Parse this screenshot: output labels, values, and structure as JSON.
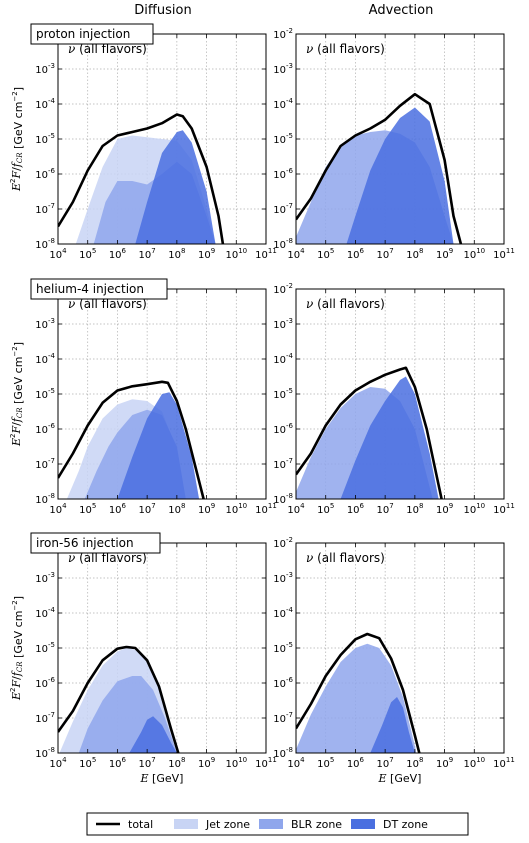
{
  "columns": [
    "Diffusion",
    "Advection"
  ],
  "rows": [
    {
      "label": "proton injection"
    },
    {
      "label": "helium-4 injection"
    },
    {
      "label": "iron-56 injection"
    }
  ],
  "annotation": "ν (all flavors)",
  "xlabel": "E [GeV]",
  "ylabel": "E²F/f_CR [GeV cm⁻²]",
  "legend": {
    "items": [
      {
        "name": "total",
        "color": "#000000",
        "kind": "line"
      },
      {
        "name": "Jet zone",
        "color": "#c8d4f4",
        "kind": "area"
      },
      {
        "name": "BLR zone",
        "color": "#8fa6ec",
        "kind": "area"
      },
      {
        "name": "DT zone",
        "color": "#4a6fe0",
        "kind": "area"
      }
    ]
  },
  "colors": {
    "jet": "#c8d4f4",
    "blr": "#8fa6ec",
    "dt": "#4a6fe0",
    "total": "#000000",
    "grid": "#b0b0b0"
  },
  "chart_data": [
    {
      "type": "area",
      "title": "Diffusion",
      "row_label": "proton injection",
      "xscale": "log",
      "yscale": "log",
      "xlim": [
        10000,
        100000000000
      ],
      "ylim": [
        1e-08,
        0.01
      ],
      "x_ticks": [
        4,
        5,
        6,
        7,
        8,
        9,
        10,
        11
      ],
      "y_ticks": [
        -8,
        -7,
        -6,
        -5,
        -4,
        -3,
        -2
      ],
      "grid": true,
      "series": [
        {
          "name": "Jet zone",
          "log10E": [
            4.6,
            5.0,
            5.5,
            6.0,
            6.5,
            7.0,
            7.5,
            8.0,
            8.5,
            9.0,
            9.3
          ],
          "log10F": [
            -8.0,
            -7.0,
            -5.8,
            -5.0,
            -4.9,
            -4.95,
            -5.0,
            -5.05,
            -5.6,
            -7.0,
            -8.0
          ]
        },
        {
          "name": "BLR zone",
          "log10E": [
            5.2,
            5.6,
            6.0,
            6.5,
            7.0,
            7.5,
            8.0,
            8.5,
            9.0,
            9.3
          ],
          "log10F": [
            -8.0,
            -6.8,
            -6.2,
            -6.2,
            -6.3,
            -6.0,
            -5.65,
            -6.0,
            -7.2,
            -8.0
          ]
        },
        {
          "name": "DT zone",
          "log10E": [
            6.6,
            7.0,
            7.5,
            8.0,
            8.2,
            8.5,
            9.0,
            9.3
          ],
          "log10F": [
            -8.0,
            -6.8,
            -5.4,
            -4.8,
            -4.75,
            -5.1,
            -6.5,
            -8.0
          ]
        },
        {
          "name": "total",
          "log10E": [
            4.0,
            4.5,
            5.0,
            5.5,
            6.0,
            6.5,
            7.0,
            7.5,
            7.8,
            8.0,
            8.2,
            8.5,
            9.0,
            9.4,
            9.55
          ],
          "log10F": [
            -7.5,
            -6.8,
            -5.9,
            -5.2,
            -4.9,
            -4.8,
            -4.7,
            -4.55,
            -4.4,
            -4.3,
            -4.35,
            -4.7,
            -5.8,
            -7.2,
            -8.0
          ]
        }
      ]
    },
    {
      "type": "area",
      "title": "Advection",
      "row_label": "proton injection",
      "xscale": "log",
      "yscale": "log",
      "xlim": [
        10000,
        100000000000
      ],
      "ylim": [
        1e-08,
        0.01
      ],
      "x_ticks": [
        4,
        5,
        6,
        7,
        8,
        9,
        10,
        11
      ],
      "y_ticks": [
        -8,
        -7,
        -6,
        -5,
        -4,
        -3,
        -2
      ],
      "grid": true,
      "series": [
        {
          "name": "BLR zone",
          "log10E": [
            4.0,
            4.5,
            5.0,
            5.5,
            6.0,
            6.5,
            7.0,
            7.5,
            8.0,
            8.5,
            9.0,
            9.3
          ],
          "log10F": [
            -7.8,
            -6.8,
            -5.8,
            -5.2,
            -4.9,
            -4.8,
            -4.75,
            -4.85,
            -5.1,
            -5.8,
            -7.2,
            -8.0
          ]
        },
        {
          "name": "DT zone",
          "log10E": [
            5.7,
            6.0,
            6.5,
            7.0,
            7.5,
            8.0,
            8.5,
            9.0,
            9.3
          ],
          "log10F": [
            -8.0,
            -7.2,
            -5.9,
            -5.0,
            -4.4,
            -4.1,
            -4.5,
            -6.2,
            -8.0
          ]
        },
        {
          "name": "total",
          "log10E": [
            4.0,
            4.5,
            5.0,
            5.5,
            6.0,
            6.5,
            7.0,
            7.5,
            8.0,
            8.5,
            9.0,
            9.3,
            9.55
          ],
          "log10F": [
            -7.3,
            -6.7,
            -5.9,
            -5.2,
            -4.9,
            -4.7,
            -4.45,
            -4.05,
            -3.72,
            -4.0,
            -5.6,
            -7.2,
            -8.0
          ]
        }
      ]
    },
    {
      "type": "area",
      "title": "Diffusion",
      "row_label": "helium-4 injection",
      "xscale": "log",
      "yscale": "log",
      "xlim": [
        10000,
        100000000000
      ],
      "ylim": [
        1e-08,
        0.01
      ],
      "x_ticks": [
        4,
        5,
        6,
        7,
        8,
        9,
        10,
        11
      ],
      "y_ticks": [
        -8,
        -7,
        -6,
        -5,
        -4,
        -3,
        -2
      ],
      "grid": true,
      "series": [
        {
          "name": "Jet zone",
          "log10E": [
            4.3,
            4.7,
            5.0,
            5.5,
            6.0,
            6.5,
            7.0,
            7.5,
            8.0,
            8.3
          ],
          "log10F": [
            -8.0,
            -7.2,
            -6.5,
            -5.7,
            -5.3,
            -5.15,
            -5.2,
            -5.5,
            -6.6,
            -8.0
          ]
        },
        {
          "name": "BLR zone",
          "log10E": [
            4.9,
            5.3,
            5.7,
            6.0,
            6.5,
            7.0,
            7.5,
            8.0,
            8.3
          ],
          "log10F": [
            -8.0,
            -7.2,
            -6.5,
            -6.1,
            -5.6,
            -5.45,
            -5.6,
            -6.5,
            -8.0
          ]
        },
        {
          "name": "DT zone",
          "log10E": [
            6.0,
            6.5,
            7.0,
            7.5,
            7.75,
            8.0,
            8.5,
            8.75
          ],
          "log10F": [
            -8.0,
            -6.8,
            -5.7,
            -5.0,
            -4.95,
            -5.3,
            -6.8,
            -8.0
          ]
        },
        {
          "name": "total",
          "log10E": [
            4.0,
            4.5,
            5.0,
            5.5,
            6.0,
            6.5,
            7.0,
            7.5,
            7.7,
            8.0,
            8.3,
            8.6,
            8.9
          ],
          "log10F": [
            -7.4,
            -6.7,
            -5.9,
            -5.25,
            -4.9,
            -4.78,
            -4.72,
            -4.65,
            -4.68,
            -5.2,
            -6.0,
            -7.0,
            -8.0
          ]
        }
      ]
    },
    {
      "type": "area",
      "title": "Advection",
      "row_label": "helium-4 injection",
      "xscale": "log",
      "yscale": "log",
      "xlim": [
        10000,
        100000000000
      ],
      "ylim": [
        1e-08,
        0.01
      ],
      "x_ticks": [
        4,
        5,
        6,
        7,
        8,
        9,
        10,
        11
      ],
      "y_ticks": [
        -8,
        -7,
        -6,
        -5,
        -4,
        -3,
        -2
      ],
      "grid": true,
      "series": [
        {
          "name": "BLR zone",
          "log10E": [
            4.0,
            4.5,
            5.0,
            5.5,
            6.0,
            6.5,
            7.0,
            7.5,
            8.0,
            8.3,
            8.6
          ],
          "log10F": [
            -7.8,
            -6.8,
            -6.0,
            -5.4,
            -5.0,
            -4.8,
            -4.85,
            -5.2,
            -6.0,
            -7.0,
            -8.0
          ]
        },
        {
          "name": "DT zone",
          "log10E": [
            5.5,
            6.0,
            6.5,
            7.0,
            7.5,
            7.7,
            8.0,
            8.5,
            8.8
          ],
          "log10F": [
            -8.0,
            -6.9,
            -5.9,
            -5.2,
            -4.6,
            -4.5,
            -5.0,
            -6.7,
            -8.0
          ]
        },
        {
          "name": "total",
          "log10E": [
            4.0,
            4.5,
            5.0,
            5.5,
            6.0,
            6.5,
            7.0,
            7.5,
            7.7,
            8.0,
            8.4,
            8.75,
            8.9
          ],
          "log10F": [
            -7.3,
            -6.7,
            -5.9,
            -5.3,
            -4.9,
            -4.65,
            -4.45,
            -4.3,
            -4.25,
            -4.8,
            -6.0,
            -7.4,
            -8.0
          ]
        }
      ]
    },
    {
      "type": "area",
      "title": "Diffusion",
      "row_label": "iron-56 injection",
      "xscale": "log",
      "yscale": "log",
      "xlim": [
        10000,
        100000000000
      ],
      "ylim": [
        1e-08,
        0.01
      ],
      "x_ticks": [
        4,
        5,
        6,
        7,
        8,
        9,
        10,
        11
      ],
      "y_ticks": [
        -8,
        -7,
        -6,
        -5,
        -4,
        -3,
        -2
      ],
      "grid": true,
      "series": [
        {
          "name": "Jet zone",
          "log10E": [
            4.05,
            4.5,
            5.0,
            5.5,
            6.0,
            6.3,
            6.6,
            7.0,
            7.4,
            7.8,
            8.0
          ],
          "log10F": [
            -8.0,
            -7.1,
            -6.2,
            -5.5,
            -5.1,
            -5.0,
            -5.05,
            -5.35,
            -6.1,
            -7.3,
            -8.0
          ]
        },
        {
          "name": "BLR zone",
          "log10E": [
            4.7,
            5.0,
            5.5,
            6.0,
            6.5,
            6.8,
            7.2,
            7.6,
            8.0
          ],
          "log10F": [
            -8.0,
            -7.3,
            -6.5,
            -5.95,
            -5.8,
            -5.8,
            -6.2,
            -7.0,
            -8.0
          ]
        },
        {
          "name": "DT zone",
          "log10E": [
            6.4,
            6.8,
            7.0,
            7.2,
            7.5,
            7.8,
            8.0
          ],
          "log10F": [
            -8.0,
            -7.4,
            -7.05,
            -6.95,
            -7.2,
            -7.7,
            -8.0
          ]
        },
        {
          "name": "total",
          "log10E": [
            4.0,
            4.5,
            5.0,
            5.5,
            6.0,
            6.3,
            6.6,
            7.0,
            7.4,
            7.8,
            8.05
          ],
          "log10F": [
            -7.4,
            -6.8,
            -6.0,
            -5.35,
            -5.02,
            -4.97,
            -5.0,
            -5.35,
            -6.1,
            -7.3,
            -8.0
          ]
        }
      ]
    },
    {
      "type": "area",
      "title": "Advection",
      "row_label": "iron-56 injection",
      "xscale": "log",
      "yscale": "log",
      "xlim": [
        10000,
        100000000000
      ],
      "ylim": [
        1e-08,
        0.01
      ],
      "x_ticks": [
        4,
        5,
        6,
        7,
        8,
        9,
        10,
        11
      ],
      "y_ticks": [
        -8,
        -7,
        -6,
        -5,
        -4,
        -3,
        -2
      ],
      "grid": true,
      "series": [
        {
          "name": "BLR zone",
          "log10E": [
            4.0,
            4.5,
            5.0,
            5.5,
            6.0,
            6.4,
            6.8,
            7.2,
            7.6,
            8.0,
            8.05
          ],
          "log10F": [
            -7.9,
            -6.9,
            -6.1,
            -5.4,
            -5.0,
            -4.88,
            -5.0,
            -5.5,
            -6.4,
            -7.8,
            -8.0
          ]
        },
        {
          "name": "DT zone",
          "log10E": [
            6.5,
            6.9,
            7.2,
            7.4,
            7.6,
            7.8,
            8.0
          ],
          "log10F": [
            -8.0,
            -7.2,
            -6.55,
            -6.4,
            -6.7,
            -7.4,
            -8.0
          ]
        },
        {
          "name": "total",
          "log10E": [
            4.0,
            4.5,
            5.0,
            5.5,
            6.0,
            6.4,
            6.8,
            7.2,
            7.6,
            8.0,
            8.15
          ],
          "log10F": [
            -7.3,
            -6.6,
            -5.8,
            -5.2,
            -4.75,
            -4.6,
            -4.72,
            -5.3,
            -6.2,
            -7.5,
            -8.0
          ]
        }
      ]
    }
  ]
}
